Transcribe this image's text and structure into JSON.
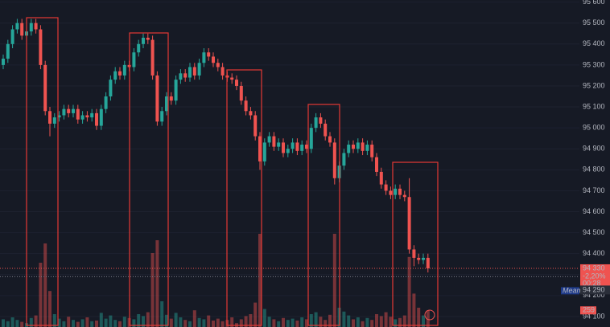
{
  "chart_data": {
    "type": "candlestick",
    "ylim": [
      94050,
      95610
    ],
    "yticks": [
      {
        "value": 95600,
        "label": "95 600"
      },
      {
        "value": 95500,
        "label": "95 500"
      },
      {
        "value": 95400,
        "label": "95 400"
      },
      {
        "value": 95300,
        "label": "95 300"
      },
      {
        "value": 95200,
        "label": "95 200"
      },
      {
        "value": 95100,
        "label": "95 100"
      },
      {
        "value": 95000,
        "label": "95 000"
      },
      {
        "value": 94900,
        "label": "94 900"
      },
      {
        "value": 94800,
        "label": "94 800"
      },
      {
        "value": 94700,
        "label": "94 700"
      },
      {
        "value": 94600,
        "label": "94 600"
      },
      {
        "value": 94500,
        "label": "94 500"
      },
      {
        "value": 94400,
        "label": "94 400"
      },
      {
        "value": 94300,
        "label": "94 300"
      },
      {
        "value": 94200,
        "label": "94 200"
      },
      {
        "value": 94100,
        "label": "94 100"
      }
    ],
    "up_color": "#26a69a",
    "down_color": "#ef5350",
    "volume_up_color": "rgba(38,166,154,0.45)",
    "volume_down_color": "rgba(239,83,80,0.45)",
    "volume_lim": [
      0,
      1500
    ],
    "open": [
      95300,
      95330,
      95400,
      95470,
      95500,
      95440,
      95460,
      95500,
      95470,
      95300,
      95080,
      95020,
      95050,
      95060,
      95090,
      95070,
      95090,
      95040,
      95060,
      95050,
      95070,
      95010,
      95090,
      95150,
      95230,
      95270,
      95250,
      95300,
      95290,
      95360,
      95400,
      95430,
      95420,
      95250,
      95030,
      95080,
      95150,
      95130,
      95230,
      95260,
      95240,
      95290,
      95250,
      95310,
      95360,
      95340,
      95310,
      95290,
      95250,
      95240,
      95230,
      95200,
      95130,
      95080,
      95060,
      94960,
      94840,
      94930,
      94960,
      94910,
      94930,
      94880,
      94900,
      94930,
      94890,
      94920,
      94900,
      95000,
      95050,
      95020,
      94960,
      94930,
      94760,
      94820,
      94880,
      94920,
      94900,
      94930,
      94890,
      94920,
      94860,
      94790,
      94730,
      94700,
      94680,
      94710,
      94680,
      94670,
      94420,
      94380,
      94370,
      94380
    ],
    "high": [
      95350,
      95420,
      95490,
      95520,
      95520,
      95480,
      95520,
      95520,
      95490,
      95320,
      95100,
      95070,
      95080,
      95110,
      95110,
      95110,
      95110,
      95080,
      95080,
      95090,
      95090,
      95110,
      95170,
      95250,
      95290,
      95290,
      95320,
      95320,
      95380,
      95420,
      95450,
      95450,
      95440,
      95270,
      95100,
      95170,
      95170,
      95250,
      95280,
      95280,
      95310,
      95310,
      95330,
      95380,
      95380,
      95360,
      95330,
      95310,
      95270,
      95260,
      95250,
      95220,
      95150,
      95100,
      95080,
      94980,
      94950,
      94980,
      94980,
      94950,
      94950,
      94920,
      94950,
      94950,
      94940,
      94940,
      95020,
      95070,
      95070,
      95040,
      94980,
      94950,
      94840,
      94900,
      94940,
      94940,
      94950,
      94950,
      94940,
      94940,
      94880,
      94810,
      94750,
      94720,
      94730,
      94730,
      94700,
      94760,
      94440,
      94400,
      94400,
      94400
    ],
    "low": [
      95280,
      95310,
      95380,
      95450,
      95420,
      95420,
      95440,
      95450,
      95280,
      95060,
      94960,
      95000,
      95030,
      95040,
      95050,
      95050,
      95020,
      95020,
      95030,
      95030,
      94990,
      94990,
      95070,
      95130,
      95210,
      95230,
      95230,
      95270,
      95270,
      95340,
      95380,
      95400,
      95230,
      95010,
      95010,
      95060,
      95110,
      95110,
      95210,
      95220,
      95220,
      95230,
      95230,
      95290,
      95320,
      95290,
      95270,
      95230,
      95220,
      95210,
      95180,
      95110,
      95060,
      95040,
      94940,
      94800,
      94820,
      94910,
      94890,
      94890,
      94860,
      94860,
      94880,
      94870,
      94870,
      94880,
      94880,
      94980,
      95000,
      94940,
      94910,
      94730,
      94740,
      94800,
      94860,
      94880,
      94880,
      94870,
      94870,
      94840,
      94770,
      94710,
      94680,
      94660,
      94660,
      94660,
      94650,
      94400,
      94340,
      94350,
      94350,
      94310
    ],
    "close": [
      95330,
      95400,
      95470,
      95500,
      95440,
      95460,
      95500,
      95470,
      95300,
      95080,
      95020,
      95050,
      95060,
      95090,
      95070,
      95090,
      95040,
      95060,
      95050,
      95070,
      95010,
      95090,
      95150,
      95230,
      95270,
      95250,
      95300,
      95290,
      95360,
      95400,
      95430,
      95420,
      95250,
      95030,
      95080,
      95150,
      95130,
      95230,
      95260,
      95240,
      95290,
      95250,
      95310,
      95360,
      95340,
      95310,
      95290,
      95250,
      95240,
      95230,
      95200,
      95130,
      95080,
      95060,
      94960,
      94840,
      94930,
      94960,
      94910,
      94930,
      94880,
      94900,
      94930,
      94890,
      94920,
      94900,
      95000,
      95050,
      95020,
      94960,
      94930,
      94760,
      94820,
      94880,
      94920,
      94900,
      94930,
      94890,
      94920,
      94860,
      94790,
      94730,
      94700,
      94680,
      94710,
      94680,
      94670,
      94420,
      94380,
      94370,
      94380,
      94330
    ],
    "volume": [
      120,
      90,
      150,
      110,
      80,
      60,
      140,
      180,
      1000,
      1300,
      560,
      200,
      130,
      90,
      160,
      110,
      80,
      120,
      150,
      90,
      100,
      220,
      130,
      180,
      110,
      90,
      160,
      140,
      120,
      200,
      170,
      230,
      1150,
      1350,
      400,
      190,
      130,
      220,
      150,
      110,
      90,
      260,
      140,
      120,
      180,
      100,
      130,
      90,
      110,
      150,
      60,
      120,
      170,
      200,
      380,
      1450,
      280,
      160,
      120,
      90,
      140,
      110,
      130,
      100,
      150,
      120,
      200,
      230,
      160,
      110,
      190,
      1450,
      300,
      240,
      180,
      120,
      150,
      90,
      140,
      110,
      200,
      170,
      230,
      160,
      120,
      140,
      180,
      1090,
      520,
      300,
      180,
      259
    ],
    "last_price_label": "94 330",
    "change_label": "-2,20%",
    "countdown": "00:28",
    "reference_price": {
      "value": 94290,
      "label": "94 290"
    },
    "reference_name": "Mean"
  }
}
